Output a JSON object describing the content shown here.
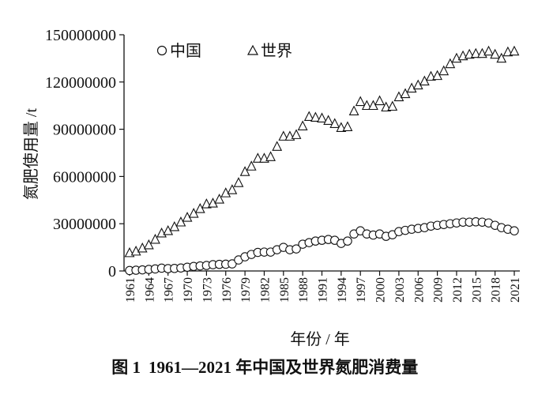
{
  "chart_data": {
    "type": "scatter",
    "xlabel": "年份 / 年",
    "ylabel": "氮肥使用量 /t",
    "ylim": [
      0,
      150000000
    ],
    "xlim": [
      1961,
      2021
    ],
    "yticks": [
      "0",
      "30000000",
      "60000000",
      "90000000",
      "120000000",
      "150000000"
    ],
    "xticks": [
      "1961",
      "1964",
      "1967",
      "1970",
      "1973",
      "1976",
      "1979",
      "1982",
      "1985",
      "1988",
      "1991",
      "1994",
      "1997",
      "2000",
      "2003",
      "2006",
      "2009",
      "2012",
      "2015",
      "2018",
      "2021"
    ],
    "legend_placement": "top-left",
    "grid": false,
    "x": [
      1961,
      1962,
      1963,
      1964,
      1965,
      1966,
      1967,
      1968,
      1969,
      1970,
      1971,
      1972,
      1973,
      1974,
      1975,
      1976,
      1977,
      1978,
      1979,
      1980,
      1981,
      1982,
      1983,
      1984,
      1985,
      1986,
      1987,
      1988,
      1989,
      1990,
      1991,
      1992,
      1993,
      1994,
      1995,
      1996,
      1997,
      1998,
      1999,
      2000,
      2001,
      2002,
      2003,
      2004,
      2005,
      2006,
      2007,
      2008,
      2009,
      2010,
      2011,
      2012,
      2013,
      2014,
      2015,
      2016,
      2017,
      2018,
      2019,
      2020,
      2021
    ],
    "series": [
      {
        "name": "中国",
        "marker": "circle",
        "values": [
          300000,
          500000,
          700000,
          1000000,
          1300000,
          1800000,
          1500000,
          1600000,
          1900000,
          2400000,
          2900000,
          3200000,
          3500000,
          4000000,
          4200000,
          4300000,
          4500000,
          7000000,
          9000000,
          10500000,
          11800000,
          12000000,
          12000000,
          13500000,
          15000000,
          13500000,
          14000000,
          17000000,
          18000000,
          19000000,
          19500000,
          20000000,
          19500000,
          17500000,
          19000000,
          23500000,
          25500000,
          23500000,
          22800000,
          23500000,
          22000000,
          23000000,
          25000000,
          25800000,
          26500000,
          27000000,
          27500000,
          28500000,
          29000000,
          29500000,
          30000000,
          30500000,
          31000000,
          31000000,
          31200000,
          31000000,
          30500000,
          29000000,
          27500000,
          26500000,
          25500000
        ]
      },
      {
        "name": "世界",
        "marker": "triangle",
        "values": [
          11500000,
          12500000,
          14500000,
          16500000,
          20000000,
          24000000,
          25500000,
          28000000,
          31000000,
          34000000,
          36500000,
          39500000,
          42500000,
          43000000,
          45500000,
          49500000,
          51500000,
          56000000,
          63000000,
          66500000,
          71500000,
          71500000,
          72500000,
          79000000,
          85500000,
          85500000,
          86500000,
          92000000,
          98000000,
          97500000,
          97000000,
          95500000,
          93500000,
          91000000,
          91500000,
          101500000,
          107500000,
          105000000,
          105000000,
          108000000,
          104000000,
          104500000,
          110500000,
          112500000,
          116000000,
          118000000,
          120500000,
          123500000,
          124000000,
          127000000,
          131500000,
          135000000,
          136500000,
          137500000,
          138000000,
          138000000,
          139500000,
          137500000,
          135000000,
          139000000,
          139500000
        ]
      }
    ]
  },
  "caption": {
    "label": "图 1",
    "text": "1961—2021 年中国及世界氮肥消费量"
  }
}
